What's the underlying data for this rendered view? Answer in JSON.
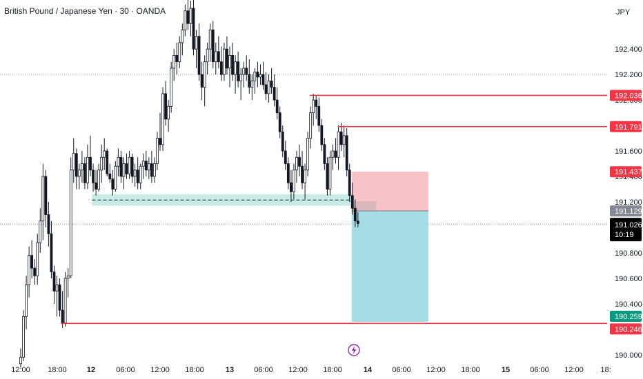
{
  "header": {
    "title": "British Pound / Japanese Yen · 30 · OANDA",
    "currency": "JPY"
  },
  "colors": {
    "up": "#ffffff",
    "down": "#131722",
    "wick": "#131722",
    "level_line": "#f23645",
    "stop_zone": "#f7c3c8",
    "target_zone": "#a6dce3",
    "entry_zone_gray": "#9e9e9e",
    "support_band": "#b7e4dd",
    "last_price_label": "#000000",
    "teal_label": "#089981"
  },
  "chart_data": {
    "type": "candlestick",
    "title": "British Pound / Japanese Yen · 30 · OANDA",
    "currency": "JPY",
    "ylim": [
      189.945,
      192.785
    ],
    "y_ticks": [
      190.0,
      190.2,
      190.4,
      190.6,
      190.8,
      191.0,
      191.2,
      191.4,
      191.6,
      191.8,
      192.0,
      192.2,
      192.4
    ],
    "y_tick_labels": [
      "190.000",
      "190.200",
      "190.400",
      "190.600",
      "190.800",
      "191.000",
      "191.200",
      "191.400",
      "191.600",
      "191.800",
      "192.000",
      "192.200",
      "192.400"
    ],
    "x_ticks": [
      {
        "label": "12:00",
        "t": 0,
        "bold": false
      },
      {
        "label": "18:00",
        "t": 1,
        "bold": false
      },
      {
        "label": "12",
        "t": 2,
        "bold": true
      },
      {
        "label": "06:00",
        "t": 3,
        "bold": false
      },
      {
        "label": "12:00",
        "t": 4,
        "bold": false
      },
      {
        "label": "18:00",
        "t": 5,
        "bold": false
      },
      {
        "label": "13",
        "t": 6,
        "bold": true
      },
      {
        "label": "06:00",
        "t": 7,
        "bold": false
      },
      {
        "label": "12:00",
        "t": 8,
        "bold": false
      },
      {
        "label": "18:00",
        "t": 9,
        "bold": false
      },
      {
        "label": "14",
        "t": 10,
        "bold": true
      },
      {
        "label": "06:00",
        "t": 11,
        "bold": false
      },
      {
        "label": "12:00",
        "t": 12,
        "bold": false
      },
      {
        "label": "18:00",
        "t": 13,
        "bold": false
      },
      {
        "label": "15",
        "t": 14,
        "bold": true
      },
      {
        "label": "06:00",
        "t": 15,
        "bold": false
      },
      {
        "label": "12:00",
        "t": 16,
        "bold": false
      },
      {
        "label": "18:",
        "t": 17,
        "bold": false
      }
    ],
    "candles": [
      {
        "t": 0.0,
        "o": 189.93,
        "h": 190.05,
        "l": 189.9,
        "c": 189.98
      },
      {
        "t": 0.08,
        "o": 189.98,
        "h": 190.35,
        "l": 189.95,
        "c": 190.3
      },
      {
        "t": 0.16,
        "o": 190.3,
        "h": 190.62,
        "l": 190.2,
        "c": 190.55
      },
      {
        "t": 0.24,
        "o": 190.55,
        "h": 190.85,
        "l": 190.45,
        "c": 190.78
      },
      {
        "t": 0.32,
        "o": 190.78,
        "h": 190.9,
        "l": 190.6,
        "c": 190.68
      },
      {
        "t": 0.4,
        "o": 190.68,
        "h": 190.75,
        "l": 190.55,
        "c": 190.62
      },
      {
        "t": 0.48,
        "o": 190.62,
        "h": 190.95,
        "l": 190.55,
        "c": 190.88
      },
      {
        "t": 0.56,
        "o": 190.88,
        "h": 191.15,
        "l": 190.8,
        "c": 191.05
      },
      {
        "t": 0.64,
        "o": 191.05,
        "h": 191.5,
        "l": 190.9,
        "c": 191.4
      },
      {
        "t": 0.72,
        "o": 191.4,
        "h": 191.45,
        "l": 191.0,
        "c": 191.1
      },
      {
        "t": 0.8,
        "o": 191.1,
        "h": 191.2,
        "l": 190.85,
        "c": 190.95
      },
      {
        "t": 0.88,
        "o": 190.95,
        "h": 191.05,
        "l": 190.6,
        "c": 190.65
      },
      {
        "t": 0.96,
        "o": 190.65,
        "h": 190.7,
        "l": 190.4,
        "c": 190.5
      },
      {
        "t": 1.04,
        "o": 190.5,
        "h": 190.62,
        "l": 190.3,
        "c": 190.55
      },
      {
        "t": 1.12,
        "o": 190.55,
        "h": 190.6,
        "l": 190.3,
        "c": 190.35
      },
      {
        "t": 1.2,
        "o": 190.35,
        "h": 190.5,
        "l": 190.21,
        "c": 190.25
      },
      {
        "t": 1.28,
        "o": 190.25,
        "h": 190.65,
        "l": 190.22,
        "c": 190.6
      },
      {
        "t": 1.36,
        "o": 190.6,
        "h": 190.68,
        "l": 190.45,
        "c": 190.62
      },
      {
        "t": 1.44,
        "o": 190.62,
        "h": 191.55,
        "l": 190.6,
        "c": 191.45
      },
      {
        "t": 1.52,
        "o": 191.45,
        "h": 191.7,
        "l": 191.35,
        "c": 191.58
      },
      {
        "t": 1.6,
        "o": 191.58,
        "h": 191.62,
        "l": 191.3,
        "c": 191.4
      },
      {
        "t": 1.68,
        "o": 191.4,
        "h": 191.5,
        "l": 191.3,
        "c": 191.45
      },
      {
        "t": 1.76,
        "o": 191.45,
        "h": 191.6,
        "l": 191.35,
        "c": 191.5
      },
      {
        "t": 1.84,
        "o": 191.5,
        "h": 191.55,
        "l": 191.3,
        "c": 191.35
      },
      {
        "t": 1.92,
        "o": 191.35,
        "h": 191.65,
        "l": 191.3,
        "c": 191.55
      },
      {
        "t": 2.0,
        "o": 191.55,
        "h": 191.72,
        "l": 191.4,
        "c": 191.45
      },
      {
        "t": 2.08,
        "o": 191.45,
        "h": 191.5,
        "l": 191.28,
        "c": 191.35
      },
      {
        "t": 2.16,
        "o": 191.35,
        "h": 191.45,
        "l": 191.25,
        "c": 191.3
      },
      {
        "t": 2.24,
        "o": 191.3,
        "h": 191.5,
        "l": 191.28,
        "c": 191.45
      },
      {
        "t": 2.32,
        "o": 191.45,
        "h": 191.65,
        "l": 191.35,
        "c": 191.55
      },
      {
        "t": 2.4,
        "o": 191.55,
        "h": 191.7,
        "l": 191.45,
        "c": 191.6
      },
      {
        "t": 2.48,
        "o": 191.6,
        "h": 191.62,
        "l": 191.4,
        "c": 191.42
      },
      {
        "t": 2.56,
        "o": 191.42,
        "h": 191.5,
        "l": 191.35,
        "c": 191.38
      },
      {
        "t": 2.64,
        "o": 191.38,
        "h": 191.45,
        "l": 191.25,
        "c": 191.3
      },
      {
        "t": 2.72,
        "o": 191.3,
        "h": 191.52,
        "l": 191.28,
        "c": 191.48
      },
      {
        "t": 2.8,
        "o": 191.48,
        "h": 191.62,
        "l": 191.4,
        "c": 191.55
      },
      {
        "t": 2.88,
        "o": 191.55,
        "h": 191.6,
        "l": 191.35,
        "c": 191.4
      },
      {
        "t": 2.96,
        "o": 191.4,
        "h": 191.55,
        "l": 191.3,
        "c": 191.5
      },
      {
        "t": 3.04,
        "o": 191.5,
        "h": 191.58,
        "l": 191.38,
        "c": 191.42
      },
      {
        "t": 3.12,
        "o": 191.42,
        "h": 191.6,
        "l": 191.38,
        "c": 191.55
      },
      {
        "t": 3.2,
        "o": 191.55,
        "h": 191.58,
        "l": 191.35,
        "c": 191.4
      },
      {
        "t": 3.28,
        "o": 191.4,
        "h": 191.5,
        "l": 191.32,
        "c": 191.45
      },
      {
        "t": 3.36,
        "o": 191.45,
        "h": 191.55,
        "l": 191.3,
        "c": 191.35
      },
      {
        "t": 3.44,
        "o": 191.35,
        "h": 191.5,
        "l": 191.3,
        "c": 191.48
      },
      {
        "t": 3.52,
        "o": 191.48,
        "h": 191.58,
        "l": 191.38,
        "c": 191.52
      },
      {
        "t": 3.6,
        "o": 191.52,
        "h": 191.6,
        "l": 191.4,
        "c": 191.45
      },
      {
        "t": 3.68,
        "o": 191.45,
        "h": 191.55,
        "l": 191.38,
        "c": 191.5
      },
      {
        "t": 3.76,
        "o": 191.5,
        "h": 191.6,
        "l": 191.35,
        "c": 191.4
      },
      {
        "t": 3.84,
        "o": 191.4,
        "h": 191.55,
        "l": 191.35,
        "c": 191.5
      },
      {
        "t": 3.92,
        "o": 191.5,
        "h": 191.75,
        "l": 191.45,
        "c": 191.7
      },
      {
        "t": 4.0,
        "o": 191.7,
        "h": 191.9,
        "l": 191.6,
        "c": 191.65
      },
      {
        "t": 4.08,
        "o": 191.65,
        "h": 192.1,
        "l": 191.6,
        "c": 192.05
      },
      {
        "t": 4.16,
        "o": 192.05,
        "h": 192.15,
        "l": 191.8,
        "c": 191.85
      },
      {
        "t": 4.24,
        "o": 191.85,
        "h": 192.0,
        "l": 191.75,
        "c": 191.95
      },
      {
        "t": 4.32,
        "o": 191.95,
        "h": 192.3,
        "l": 191.9,
        "c": 192.25
      },
      {
        "t": 4.4,
        "o": 192.25,
        "h": 192.4,
        "l": 192.15,
        "c": 192.35
      },
      {
        "t": 4.48,
        "o": 192.35,
        "h": 192.45,
        "l": 192.2,
        "c": 192.3
      },
      {
        "t": 4.56,
        "o": 192.3,
        "h": 192.5,
        "l": 192.25,
        "c": 192.45
      },
      {
        "t": 4.64,
        "o": 192.45,
        "h": 192.6,
        "l": 192.35,
        "c": 192.55
      },
      {
        "t": 4.72,
        "o": 192.55,
        "h": 192.75,
        "l": 192.5,
        "c": 192.7
      },
      {
        "t": 4.8,
        "o": 192.7,
        "h": 192.8,
        "l": 192.55,
        "c": 192.6
      },
      {
        "t": 4.88,
        "o": 192.6,
        "h": 192.78,
        "l": 192.5,
        "c": 192.72
      },
      {
        "t": 4.96,
        "o": 192.72,
        "h": 192.8,
        "l": 192.35,
        "c": 192.4
      },
      {
        "t": 5.04,
        "o": 192.4,
        "h": 192.55,
        "l": 192.25,
        "c": 192.5
      },
      {
        "t": 5.12,
        "o": 192.5,
        "h": 192.6,
        "l": 192.15,
        "c": 192.2
      },
      {
        "t": 5.2,
        "o": 192.2,
        "h": 192.3,
        "l": 192.0,
        "c": 192.1
      },
      {
        "t": 5.28,
        "o": 192.1,
        "h": 192.35,
        "l": 191.95,
        "c": 192.3
      },
      {
        "t": 5.36,
        "o": 192.3,
        "h": 192.45,
        "l": 192.2,
        "c": 192.4
      },
      {
        "t": 5.44,
        "o": 192.4,
        "h": 192.6,
        "l": 192.3,
        "c": 192.55
      },
      {
        "t": 5.52,
        "o": 192.55,
        "h": 192.62,
        "l": 192.25,
        "c": 192.3
      },
      {
        "t": 5.6,
        "o": 192.3,
        "h": 192.45,
        "l": 192.2,
        "c": 192.38
      },
      {
        "t": 5.68,
        "o": 192.38,
        "h": 192.5,
        "l": 192.25,
        "c": 192.3
      },
      {
        "t": 5.76,
        "o": 192.3,
        "h": 192.42,
        "l": 192.15,
        "c": 192.2
      },
      {
        "t": 5.84,
        "o": 192.2,
        "h": 192.45,
        "l": 192.15,
        "c": 192.4
      },
      {
        "t": 5.92,
        "o": 192.4,
        "h": 192.5,
        "l": 192.2,
        "c": 192.25
      },
      {
        "t": 6.0,
        "o": 192.25,
        "h": 192.42,
        "l": 192.1,
        "c": 192.35
      },
      {
        "t": 6.08,
        "o": 192.35,
        "h": 192.45,
        "l": 192.15,
        "c": 192.2
      },
      {
        "t": 6.16,
        "o": 192.2,
        "h": 192.35,
        "l": 192.05,
        "c": 192.3
      },
      {
        "t": 6.24,
        "o": 192.3,
        "h": 192.38,
        "l": 192.1,
        "c": 192.15
      },
      {
        "t": 6.32,
        "o": 192.15,
        "h": 192.25,
        "l": 192.0,
        "c": 192.2
      },
      {
        "t": 6.4,
        "o": 192.2,
        "h": 192.3,
        "l": 192.1,
        "c": 192.25
      },
      {
        "t": 6.48,
        "o": 192.25,
        "h": 192.35,
        "l": 192.15,
        "c": 192.2
      },
      {
        "t": 6.56,
        "o": 192.2,
        "h": 192.32,
        "l": 192.05,
        "c": 192.1
      },
      {
        "t": 6.64,
        "o": 192.1,
        "h": 192.2,
        "l": 192.0,
        "c": 192.15
      },
      {
        "t": 6.72,
        "o": 192.15,
        "h": 192.25,
        "l": 192.05,
        "c": 192.22
      },
      {
        "t": 6.8,
        "o": 192.22,
        "h": 192.3,
        "l": 192.1,
        "c": 192.18
      },
      {
        "t": 6.88,
        "o": 192.18,
        "h": 192.28,
        "l": 192.12,
        "c": 192.2
      },
      {
        "t": 6.96,
        "o": 192.2,
        "h": 192.3,
        "l": 192.08,
        "c": 192.12
      },
      {
        "t": 7.04,
        "o": 192.12,
        "h": 192.22,
        "l": 192.0,
        "c": 192.05
      },
      {
        "t": 7.12,
        "o": 192.05,
        "h": 192.2,
        "l": 191.98,
        "c": 192.15
      },
      {
        "t": 7.2,
        "o": 192.15,
        "h": 192.25,
        "l": 192.05,
        "c": 192.1
      },
      {
        "t": 7.28,
        "o": 192.1,
        "h": 192.2,
        "l": 191.95,
        "c": 192.0
      },
      {
        "t": 7.36,
        "o": 192.0,
        "h": 192.1,
        "l": 191.85,
        "c": 191.9
      },
      {
        "t": 7.44,
        "o": 191.9,
        "h": 191.95,
        "l": 191.7,
        "c": 191.75
      },
      {
        "t": 7.52,
        "o": 191.75,
        "h": 191.8,
        "l": 191.55,
        "c": 191.6
      },
      {
        "t": 7.6,
        "o": 191.6,
        "h": 191.68,
        "l": 191.45,
        "c": 191.5
      },
      {
        "t": 7.68,
        "o": 191.5,
        "h": 191.55,
        "l": 191.3,
        "c": 191.35
      },
      {
        "t": 7.76,
        "o": 191.35,
        "h": 191.45,
        "l": 191.2,
        "c": 191.28
      },
      {
        "t": 7.84,
        "o": 191.28,
        "h": 191.5,
        "l": 191.22,
        "c": 191.45
      },
      {
        "t": 7.92,
        "o": 191.45,
        "h": 191.6,
        "l": 191.35,
        "c": 191.55
      },
      {
        "t": 8.0,
        "o": 191.55,
        "h": 191.65,
        "l": 191.4,
        "c": 191.48
      },
      {
        "t": 8.08,
        "o": 191.48,
        "h": 191.6,
        "l": 191.3,
        "c": 191.35
      },
      {
        "t": 8.16,
        "o": 191.35,
        "h": 191.5,
        "l": 191.22,
        "c": 191.45
      },
      {
        "t": 8.24,
        "o": 191.45,
        "h": 191.75,
        "l": 191.4,
        "c": 191.7
      },
      {
        "t": 8.32,
        "o": 191.7,
        "h": 191.95,
        "l": 191.62,
        "c": 191.9
      },
      {
        "t": 8.4,
        "o": 191.9,
        "h": 192.05,
        "l": 191.8,
        "c": 192.0
      },
      {
        "t": 8.48,
        "o": 192.0,
        "h": 192.04,
        "l": 191.85,
        "c": 191.95
      },
      {
        "t": 8.56,
        "o": 191.95,
        "h": 192.02,
        "l": 191.75,
        "c": 191.8
      },
      {
        "t": 8.64,
        "o": 191.8,
        "h": 191.85,
        "l": 191.6,
        "c": 191.65
      },
      {
        "t": 8.72,
        "o": 191.65,
        "h": 191.7,
        "l": 191.45,
        "c": 191.5
      },
      {
        "t": 8.8,
        "o": 191.5,
        "h": 191.55,
        "l": 191.25,
        "c": 191.3
      },
      {
        "t": 8.88,
        "o": 191.3,
        "h": 191.6,
        "l": 191.25,
        "c": 191.55
      },
      {
        "t": 8.96,
        "o": 191.55,
        "h": 191.65,
        "l": 191.45,
        "c": 191.6
      },
      {
        "t": 9.04,
        "o": 191.6,
        "h": 191.7,
        "l": 191.5,
        "c": 191.55
      },
      {
        "t": 9.12,
        "o": 191.55,
        "h": 191.8,
        "l": 191.45,
        "c": 191.75
      },
      {
        "t": 9.2,
        "o": 191.75,
        "h": 191.82,
        "l": 191.6,
        "c": 191.65
      },
      {
        "t": 9.28,
        "o": 191.65,
        "h": 191.8,
        "l": 191.55,
        "c": 191.72
      },
      {
        "t": 9.36,
        "o": 191.72,
        "h": 191.78,
        "l": 191.4,
        "c": 191.45
      },
      {
        "t": 9.44,
        "o": 191.45,
        "h": 191.5,
        "l": 191.2,
        "c": 191.25
      },
      {
        "t": 9.52,
        "o": 191.25,
        "h": 191.35,
        "l": 191.1,
        "c": 191.15
      },
      {
        "t": 9.6,
        "o": 191.15,
        "h": 191.22,
        "l": 191.0,
        "c": 191.05
      },
      {
        "t": 9.68,
        "o": 191.05,
        "h": 191.12,
        "l": 191.0,
        "c": 191.03
      }
    ],
    "levels": [
      {
        "price": 192.036,
        "label": "192.036",
        "t_start": 8.3
      },
      {
        "price": 191.791,
        "label": "191.791",
        "t_start": 9.1
      },
      {
        "price": 190.246,
        "label": "190.246",
        "t_start": 1.15
      }
    ],
    "price_labels": [
      {
        "price": 192.036,
        "text": "192.036",
        "style": "red"
      },
      {
        "price": 191.791,
        "text": "191.791",
        "style": "red"
      },
      {
        "price": 191.437,
        "text": "191.437",
        "style": "red"
      },
      {
        "price": 191.129,
        "text": "191.129",
        "style": "gray"
      },
      {
        "price": 191.026,
        "text": "191.026",
        "sub": "10:19",
        "style": "black"
      },
      {
        "price": 190.259,
        "text": "190.259",
        "style": "teal"
      },
      {
        "price": 190.246,
        "text": "190.246",
        "style": "red"
      }
    ],
    "support_zone": {
      "price_top": 191.26,
      "price_bottom": 191.17,
      "price_mid": 191.215,
      "t_start": 2.05,
      "t_end": 10.3
    },
    "position": {
      "t_start": 9.5,
      "t_end": 11.7,
      "stop": 191.437,
      "entry": 191.129,
      "target": 190.259
    },
    "dotted_lines": [
      192.2,
      191.026
    ],
    "current_price": 191.026
  }
}
